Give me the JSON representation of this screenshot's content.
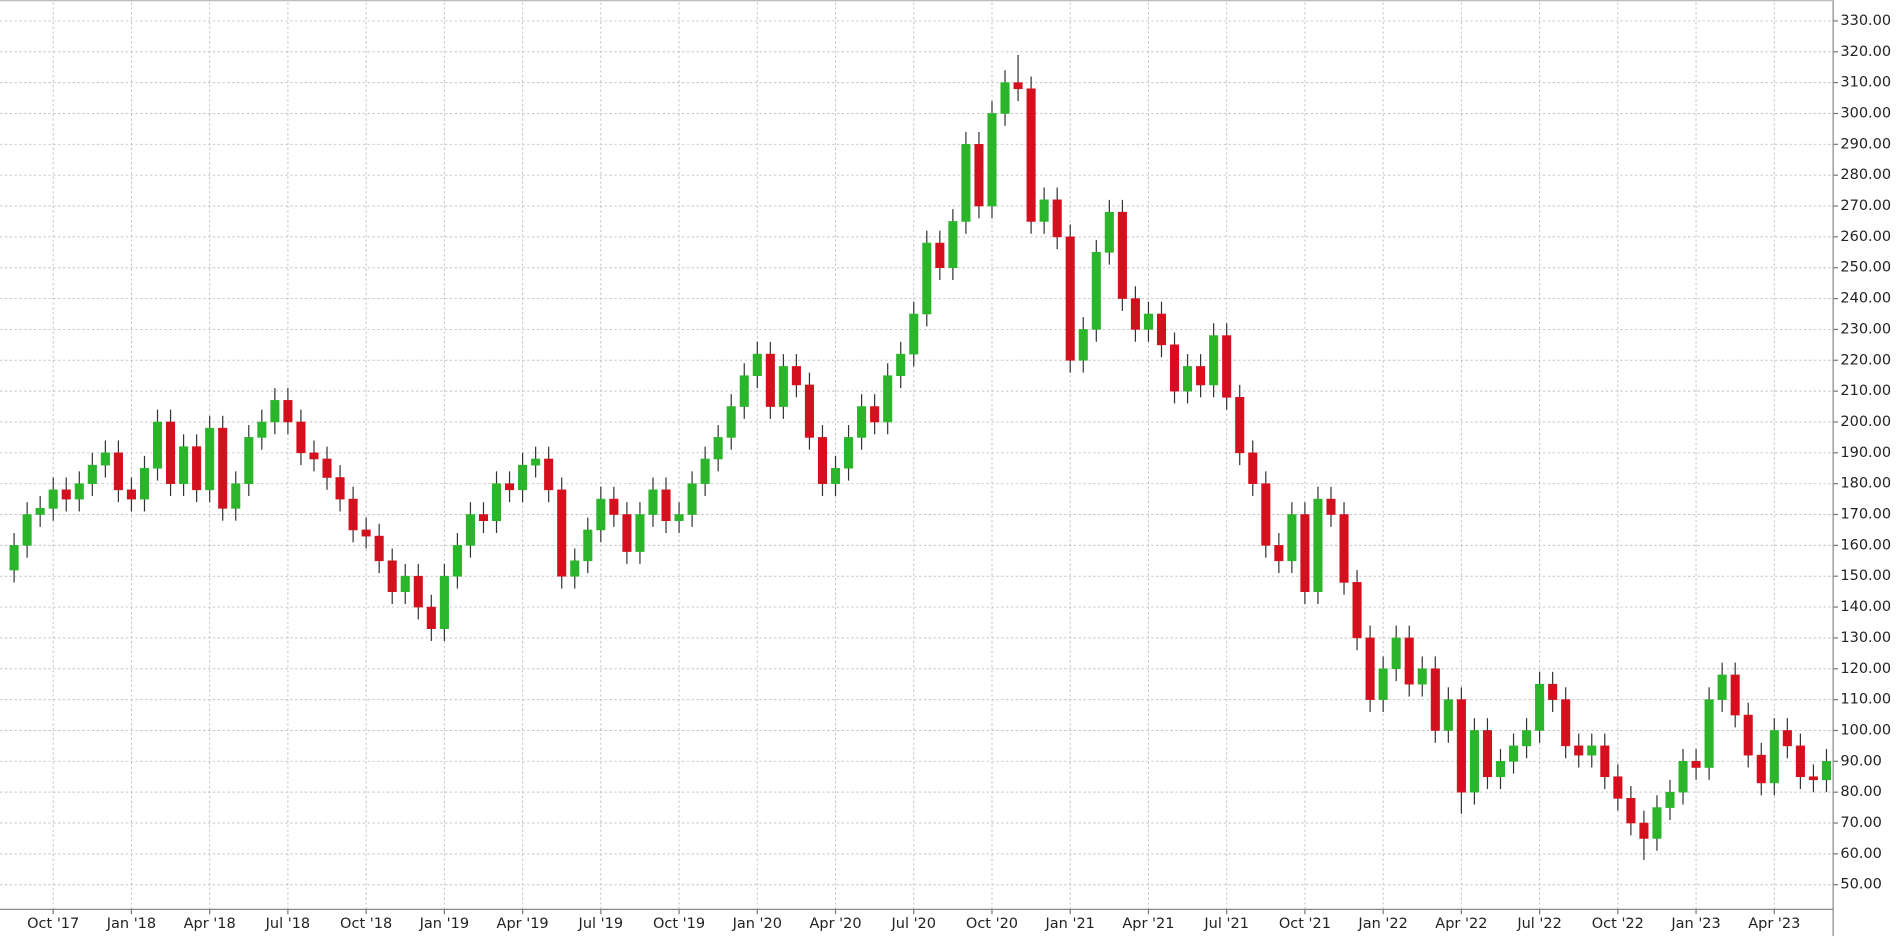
{
  "chart_data": {
    "type": "candlestick",
    "categories": [
      null,
      null,
      null,
      "Oct '17",
      null,
      null,
      null,
      null,
      null,
      "Jan '18",
      null,
      null,
      null,
      null,
      null,
      "Apr '18",
      null,
      null,
      null,
      null,
      null,
      "Jul '18",
      null,
      null,
      null,
      null,
      null,
      "Oct '18",
      null,
      null,
      null,
      null,
      null,
      "Jan '19",
      null,
      null,
      null,
      null,
      null,
      "Apr '19",
      null,
      null,
      null,
      null,
      null,
      "Jul '19",
      null,
      null,
      null,
      null,
      null,
      "Oct '19",
      null,
      null,
      null,
      null,
      null,
      "Jan '20",
      null,
      null,
      null,
      null,
      null,
      "Apr '20",
      null,
      null,
      null,
      null,
      null,
      "Jul '20",
      null,
      null,
      null,
      null,
      null,
      "Oct '20",
      null,
      null,
      null,
      null,
      null,
      "Jan '21",
      null,
      null,
      null,
      null,
      null,
      "Apr '21",
      null,
      null,
      null,
      null,
      null,
      "Jul '21",
      null,
      null,
      null,
      null,
      null,
      "Oct '21",
      null,
      null,
      null,
      null,
      null,
      "Jan '22",
      null,
      null,
      null,
      null,
      null,
      "Apr '22",
      null,
      null,
      null,
      null,
      null,
      "Jul '22",
      null,
      null,
      null,
      null,
      null,
      "Oct '22",
      null,
      null,
      null,
      null,
      null,
      "Jan '23",
      null,
      null,
      null,
      null,
      null,
      "Apr '23",
      null,
      null,
      null,
      null
    ],
    "open": [
      152,
      160,
      170,
      172,
      178,
      175,
      180,
      186,
      190,
      178,
      175,
      185,
      200,
      180,
      192,
      178,
      198,
      172,
      180,
      195,
      200,
      207,
      200,
      190,
      188,
      182,
      175,
      165,
      163,
      155,
      145,
      150,
      140,
      133,
      150,
      160,
      170,
      168,
      180,
      178,
      186,
      188,
      178,
      150,
      155,
      165,
      175,
      170,
      158,
      170,
      178,
      168,
      170,
      180,
      188,
      195,
      205,
      215,
      222,
      205,
      218,
      212,
      195,
      180,
      185,
      195,
      205,
      200,
      215,
      222,
      235,
      258,
      250,
      265,
      290,
      270,
      300,
      310,
      308,
      265,
      272,
      260,
      220,
      230,
      255,
      268,
      240,
      230,
      235,
      225,
      210,
      218,
      212,
      228,
      208,
      190,
      180,
      160,
      155,
      170,
      145,
      175,
      170,
      148,
      130,
      110,
      120,
      130,
      115,
      120,
      100,
      110,
      80,
      100,
      85,
      90,
      95,
      100,
      115,
      110,
      95,
      92,
      95,
      85,
      78,
      70,
      65,
      75,
      80,
      90,
      88,
      110,
      118,
      105,
      92,
      83,
      100,
      95,
      85,
      84
    ],
    "high": [
      164,
      174,
      176,
      182,
      182,
      184,
      190,
      194,
      194,
      182,
      189,
      204,
      204,
      196,
      196,
      202,
      202,
      184,
      199,
      204,
      211,
      211,
      204,
      194,
      192,
      186,
      179,
      169,
      167,
      159,
      154,
      154,
      144,
      154,
      164,
      174,
      174,
      184,
      184,
      190,
      192,
      192,
      182,
      159,
      169,
      179,
      179,
      174,
      174,
      182,
      182,
      174,
      184,
      192,
      199,
      209,
      219,
      226,
      226,
      222,
      222,
      216,
      199,
      189,
      199,
      209,
      209,
      219,
      226,
      239,
      262,
      262,
      269,
      294,
      294,
      304,
      314,
      319,
      312,
      276,
      276,
      264,
      234,
      259,
      272,
      272,
      244,
      239,
      239,
      229,
      222,
      222,
      232,
      232,
      212,
      194,
      184,
      164,
      174,
      174,
      179,
      179,
      174,
      152,
      134,
      124,
      134,
      134,
      124,
      124,
      114,
      114,
      104,
      104,
      94,
      99,
      104,
      119,
      119,
      114,
      99,
      99,
      99,
      89,
      82,
      74,
      79,
      84,
      94,
      94,
      114,
      122,
      122,
      109,
      96,
      104,
      104,
      99,
      89,
      94
    ],
    "low": [
      148,
      156,
      166,
      168,
      171,
      171,
      176,
      182,
      174,
      171,
      171,
      181,
      176,
      176,
      174,
      174,
      168,
      168,
      176,
      191,
      196,
      196,
      186,
      184,
      178,
      171,
      161,
      159,
      151,
      141,
      141,
      136,
      129,
      129,
      146,
      156,
      164,
      164,
      174,
      174,
      182,
      174,
      146,
      146,
      151,
      161,
      166,
      154,
      154,
      166,
      164,
      164,
      166,
      176,
      184,
      191,
      201,
      211,
      201,
      201,
      208,
      191,
      176,
      176,
      181,
      191,
      196,
      196,
      211,
      218,
      231,
      246,
      246,
      261,
      266,
      266,
      296,
      304,
      261,
      261,
      256,
      216,
      216,
      226,
      251,
      236,
      226,
      226,
      221,
      206,
      206,
      208,
      208,
      204,
      186,
      176,
      156,
      151,
      151,
      141,
      141,
      166,
      144,
      126,
      106,
      106,
      116,
      111,
      111,
      96,
      96,
      73,
      76,
      81,
      81,
      86,
      91,
      96,
      106,
      91,
      88,
      88,
      81,
      74,
      66,
      58,
      61,
      71,
      76,
      84,
      84,
      106,
      101,
      88,
      79,
      79,
      91,
      81,
      80,
      80
    ],
    "close": [
      160,
      170,
      172,
      178,
      175,
      180,
      186,
      190,
      178,
      175,
      185,
      200,
      180,
      192,
      178,
      198,
      172,
      180,
      195,
      200,
      207,
      200,
      190,
      188,
      182,
      175,
      165,
      163,
      155,
      145,
      150,
      140,
      133,
      150,
      160,
      170,
      168,
      180,
      178,
      186,
      188,
      178,
      150,
      155,
      165,
      175,
      170,
      158,
      170,
      178,
      168,
      170,
      180,
      188,
      195,
      205,
      215,
      222,
      205,
      218,
      212,
      195,
      180,
      185,
      195,
      205,
      200,
      215,
      222,
      235,
      258,
      250,
      265,
      290,
      270,
      300,
      310,
      308,
      265,
      272,
      260,
      220,
      230,
      255,
      268,
      240,
      230,
      235,
      225,
      210,
      218,
      212,
      228,
      208,
      190,
      180,
      160,
      155,
      170,
      145,
      175,
      170,
      148,
      130,
      110,
      120,
      130,
      115,
      120,
      100,
      110,
      80,
      100,
      85,
      90,
      95,
      100,
      115,
      110,
      95,
      92,
      95,
      85,
      78,
      70,
      65,
      75,
      80,
      90,
      88,
      110,
      118,
      105,
      92,
      83,
      100,
      95,
      85,
      84,
      90
    ],
    "up_color": "#2bb52b",
    "down_color": "#d4101e",
    "ylim": [
      42,
      336
    ],
    "yticks": [
      {
        "value": 50,
        "label": "50.00"
      },
      {
        "value": 60,
        "label": "60.00"
      },
      {
        "value": 70,
        "label": "70.00"
      },
      {
        "value": 80,
        "label": "80.00"
      },
      {
        "value": 90,
        "label": "90.00"
      },
      {
        "value": 100,
        "label": "100.00"
      },
      {
        "value": 110,
        "label": "110.00"
      },
      {
        "value": 120,
        "label": "120.00"
      },
      {
        "value": 130,
        "label": "130.00"
      },
      {
        "value": 140,
        "label": "140.00"
      },
      {
        "value": 150,
        "label": "150.00"
      },
      {
        "value": 160,
        "label": "160.00"
      },
      {
        "value": 170,
        "label": "170.00"
      },
      {
        "value": 180,
        "label": "180.00"
      },
      {
        "value": 190,
        "label": "190.00"
      },
      {
        "value": 200,
        "label": "200.00"
      },
      {
        "value": 210,
        "label": "210.00"
      },
      {
        "value": 220,
        "label": "220.00"
      },
      {
        "value": 230,
        "label": "230.00"
      },
      {
        "value": 240,
        "label": "240.00"
      },
      {
        "value": 250,
        "label": "250.00"
      },
      {
        "value": 260,
        "label": "260.00"
      },
      {
        "value": 270,
        "label": "270.00"
      },
      {
        "value": 280,
        "label": "280.00"
      },
      {
        "value": 290,
        "label": "290.00"
      },
      {
        "value": 300,
        "label": "300.00"
      },
      {
        "value": 310,
        "label": "310.00"
      },
      {
        "value": 320,
        "label": "320.00"
      },
      {
        "value": 330,
        "label": "330.00"
      }
    ],
    "grid": true
  }
}
